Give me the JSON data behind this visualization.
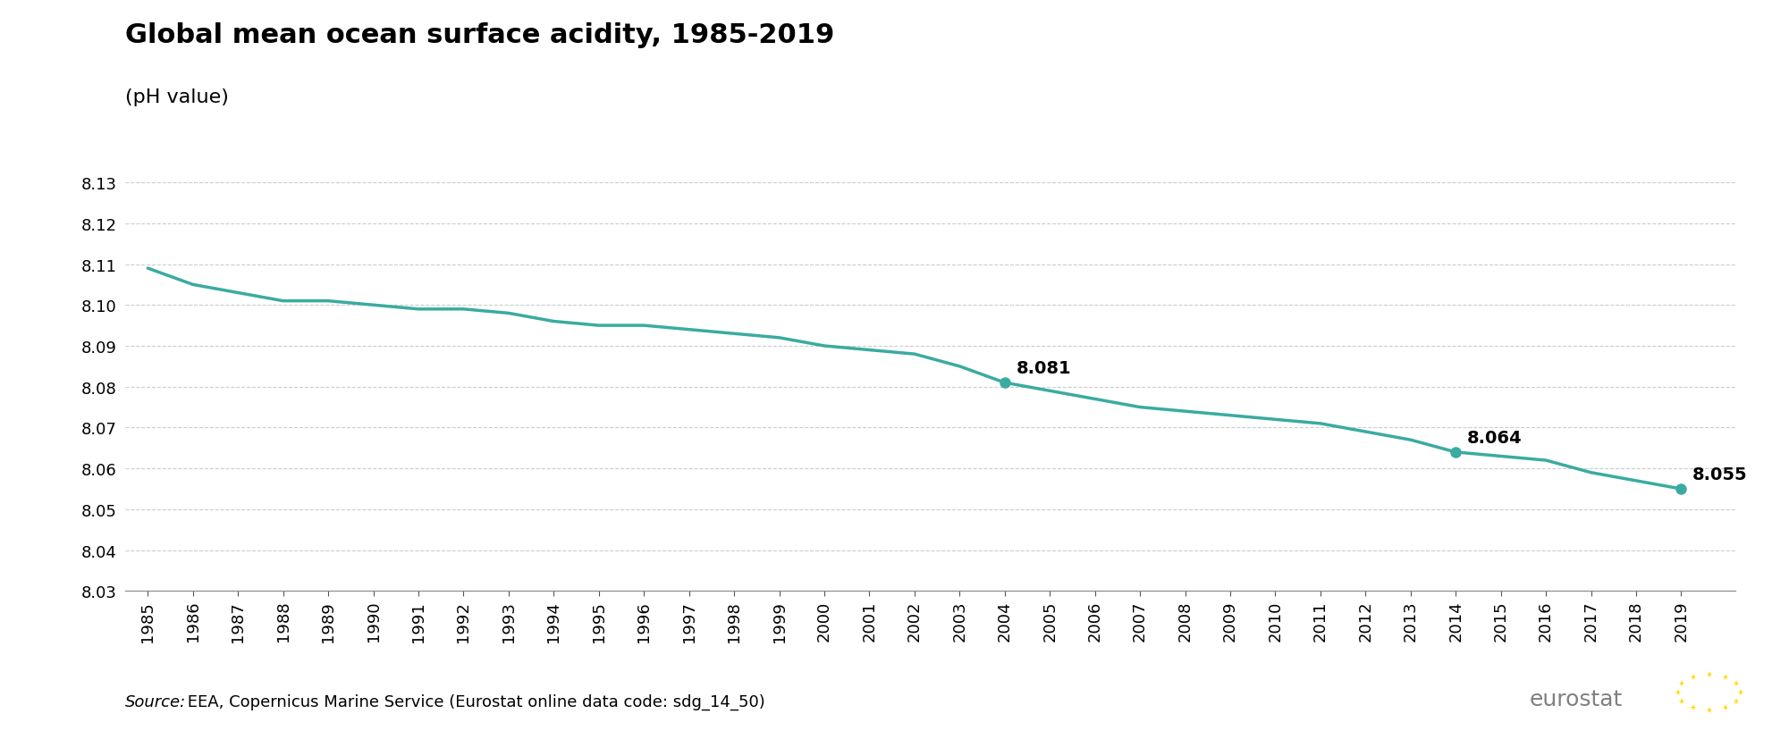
{
  "title": "Global mean ocean surface acidity, 1985-2019",
  "subtitle": "(pH value)",
  "line_color": "#3aaba0",
  "background_color": "#ffffff",
  "grid_color": "#cccccc",
  "years": [
    1985,
    1986,
    1987,
    1988,
    1989,
    1990,
    1991,
    1992,
    1993,
    1994,
    1995,
    1996,
    1997,
    1998,
    1999,
    2000,
    2001,
    2002,
    2003,
    2004,
    2005,
    2006,
    2007,
    2008,
    2009,
    2010,
    2011,
    2012,
    2013,
    2014,
    2015,
    2016,
    2017,
    2018,
    2019
  ],
  "values": [
    8.109,
    8.105,
    8.103,
    8.101,
    8.101,
    8.1,
    8.099,
    8.099,
    8.098,
    8.096,
    8.095,
    8.095,
    8.094,
    8.093,
    8.092,
    8.09,
    8.089,
    8.088,
    8.085,
    8.081,
    8.079,
    8.077,
    8.075,
    8.074,
    8.073,
    8.072,
    8.071,
    8.069,
    8.067,
    8.064,
    8.063,
    8.062,
    8.059,
    8.057,
    8.055
  ],
  "annotated_points": [
    {
      "year": 2004,
      "value": 8.081,
      "label": "8.081"
    },
    {
      "year": 2014,
      "value": 8.064,
      "label": "8.064"
    },
    {
      "year": 2019,
      "value": 8.055,
      "label": "8.055"
    }
  ],
  "ylim": [
    8.03,
    8.135
  ],
  "yticks": [
    8.03,
    8.04,
    8.05,
    8.06,
    8.07,
    8.08,
    8.09,
    8.1,
    8.11,
    8.12,
    8.13
  ],
  "source_label": "Source:",
  "source_rest": " EEA, Copernicus Marine Service (Eurostat online data code: sdg_14_50)",
  "title_fontsize": 22,
  "subtitle_fontsize": 16,
  "tick_fontsize": 13,
  "source_fontsize": 13,
  "annotation_fontsize": 14,
  "line_width": 2.5,
  "marker_size": 8,
  "eurostat_text_color": "#808080",
  "eurostat_box_color": "#003399",
  "star_color": "#FFD700"
}
